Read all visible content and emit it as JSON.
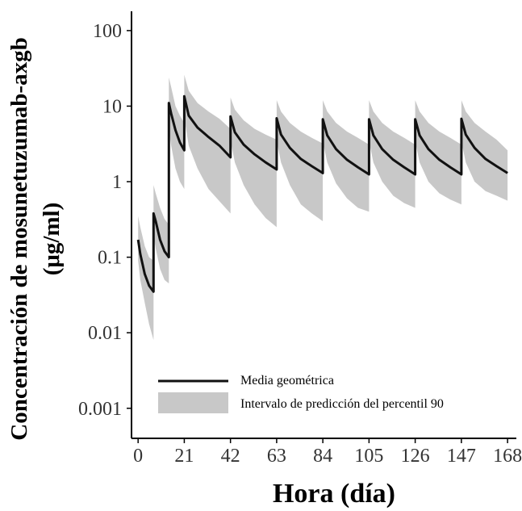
{
  "chart_data": {
    "type": "line",
    "title": "",
    "xlabel": "Hora (día)",
    "ylabel": "Concentración de mosunetuzumab-axgb",
    "ylabel_unit": "(μg/ml)",
    "yscale": "log",
    "xlim": [
      -3,
      172
    ],
    "ylim": [
      0.0004,
      180
    ],
    "x_ticks": [
      0,
      21,
      42,
      63,
      84,
      105,
      126,
      147,
      168
    ],
    "x_tick_labels": [
      "0",
      "21",
      "42",
      "63",
      "84",
      "105",
      "126",
      "147",
      "168"
    ],
    "y_ticks": [
      0.001,
      0.01,
      0.1,
      1,
      10,
      100
    ],
    "y_tick_labels": [
      "0.001",
      "0.01",
      "0.1",
      "1",
      "10",
      "100"
    ],
    "legend_position": "bottom-left",
    "colors": {
      "line": "#111111",
      "band": "#c8c8c8"
    },
    "series": [
      {
        "name": "Media geométrica",
        "kind": "line",
        "x": [
          0,
          1,
          3,
          5,
          7,
          7,
          8,
          10,
          12,
          14,
          14,
          15,
          17,
          19,
          21,
          21,
          23,
          27,
          32,
          37,
          42,
          42,
          44,
          48,
          53,
          58,
          63,
          63,
          65,
          69,
          74,
          79,
          84,
          84,
          86,
          90,
          95,
          100,
          105,
          105,
          107,
          111,
          116,
          121,
          126,
          126,
          128,
          132,
          137,
          142,
          147,
          147,
          149,
          153,
          158,
          163,
          168
        ],
        "y": [
          0.17,
          0.11,
          0.06,
          0.042,
          0.035,
          0.38,
          0.3,
          0.17,
          0.12,
          0.1,
          11,
          8,
          4.8,
          3.3,
          2.6,
          13.5,
          7.5,
          5.2,
          3.9,
          3.0,
          2.1,
          7.3,
          4.5,
          3.1,
          2.3,
          1.8,
          1.45,
          6.9,
          4.2,
          2.8,
          2.0,
          1.6,
          1.3,
          6.7,
          4.1,
          2.7,
          1.95,
          1.55,
          1.25,
          6.7,
          4.1,
          2.7,
          1.95,
          1.55,
          1.25,
          6.7,
          4.1,
          2.7,
          1.95,
          1.55,
          1.25,
          6.8,
          4.2,
          2.8,
          2.0,
          1.6,
          1.3
        ]
      },
      {
        "name": "Intervalo de predicción del percentil 90",
        "kind": "band",
        "x": [
          0,
          1,
          3,
          5,
          7,
          7,
          8,
          10,
          12,
          14,
          14,
          15,
          17,
          19,
          21,
          21,
          23,
          27,
          32,
          37,
          42,
          42,
          44,
          48,
          53,
          58,
          63,
          63,
          65,
          69,
          74,
          79,
          84,
          84,
          86,
          90,
          95,
          100,
          105,
          105,
          107,
          111,
          116,
          121,
          126,
          126,
          128,
          132,
          137,
          142,
          147,
          147,
          149,
          153,
          158,
          163,
          168
        ],
        "upper": [
          0.35,
          0.25,
          0.14,
          0.1,
          0.09,
          0.9,
          0.7,
          0.45,
          0.32,
          0.27,
          24,
          18,
          10,
          7.5,
          6,
          26,
          16,
          11,
          8.5,
          6.8,
          5,
          13,
          9,
          6.5,
          5,
          4.2,
          3.6,
          12,
          8.5,
          6,
          4.6,
          3.8,
          3.2,
          12,
          8.5,
          6,
          4.6,
          3.8,
          3.1,
          12,
          8.5,
          6,
          4.6,
          3.8,
          3.1,
          12,
          8.5,
          6,
          4.6,
          3.8,
          3.1,
          12,
          8.5,
          6,
          4.6,
          3.6,
          2.6
        ],
        "lower": [
          0.09,
          0.05,
          0.025,
          0.013,
          0.008,
          0.2,
          0.13,
          0.07,
          0.05,
          0.045,
          5,
          3,
          1.5,
          1.0,
          0.8,
          7,
          3,
          1.5,
          0.8,
          0.55,
          0.38,
          3.5,
          1.8,
          0.9,
          0.5,
          0.33,
          0.25,
          3.5,
          1.8,
          0.9,
          0.5,
          0.38,
          0.3,
          3.4,
          1.8,
          0.95,
          0.6,
          0.45,
          0.4,
          3.4,
          1.8,
          1.0,
          0.65,
          0.52,
          0.45,
          3.4,
          1.8,
          1.0,
          0.7,
          0.58,
          0.5,
          3.4,
          1.8,
          1.0,
          0.75,
          0.65,
          0.56
        ]
      }
    ]
  }
}
